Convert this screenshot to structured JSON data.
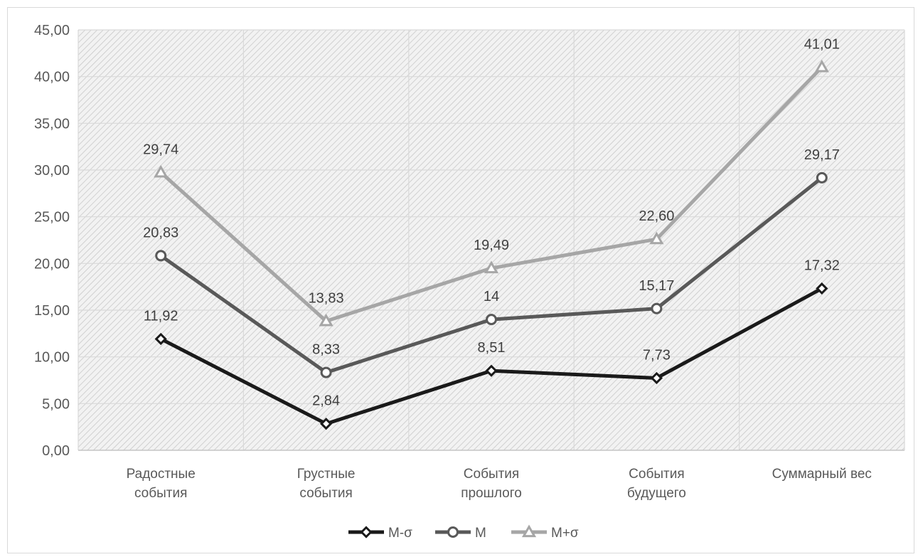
{
  "chart_data": {
    "type": "line",
    "categories": [
      [
        "Радостные",
        "события"
      ],
      [
        "Грустные",
        "события"
      ],
      [
        "События",
        "прошлого"
      ],
      [
        "События",
        "будущего"
      ],
      [
        "Суммарный вес"
      ]
    ],
    "series": [
      {
        "name": "M-σ",
        "values": [
          11.92,
          2.84,
          8.51,
          7.73,
          17.32
        ],
        "labels": [
          "11,92",
          "2,84",
          "8,51",
          "7,73",
          "17,32"
        ],
        "color": "#1a1a1a",
        "marker": "diamond"
      },
      {
        "name": "M",
        "values": [
          20.83,
          8.33,
          14,
          15.17,
          29.17
        ],
        "labels": [
          "20,83",
          "8,33",
          "14",
          "15,17",
          "29,17"
        ],
        "color": "#595959",
        "marker": "circle"
      },
      {
        "name": "M+σ",
        "values": [
          29.74,
          13.83,
          19.49,
          22.6,
          41.01
        ],
        "labels": [
          "29,74",
          "13,83",
          "19,49",
          "22,60",
          "41,01"
        ],
        "color": "#a6a6a6",
        "marker": "triangle"
      }
    ],
    "ylim": [
      0,
      45
    ],
    "yticks": [
      "0,00",
      "5,00",
      "10,00",
      "15,00",
      "20,00",
      "25,00",
      "30,00",
      "35,00",
      "40,00",
      "45,00"
    ],
    "grid": true,
    "plot_background": "hatched",
    "legend": "bottom-center",
    "title": "",
    "xlabel": "",
    "ylabel": ""
  }
}
